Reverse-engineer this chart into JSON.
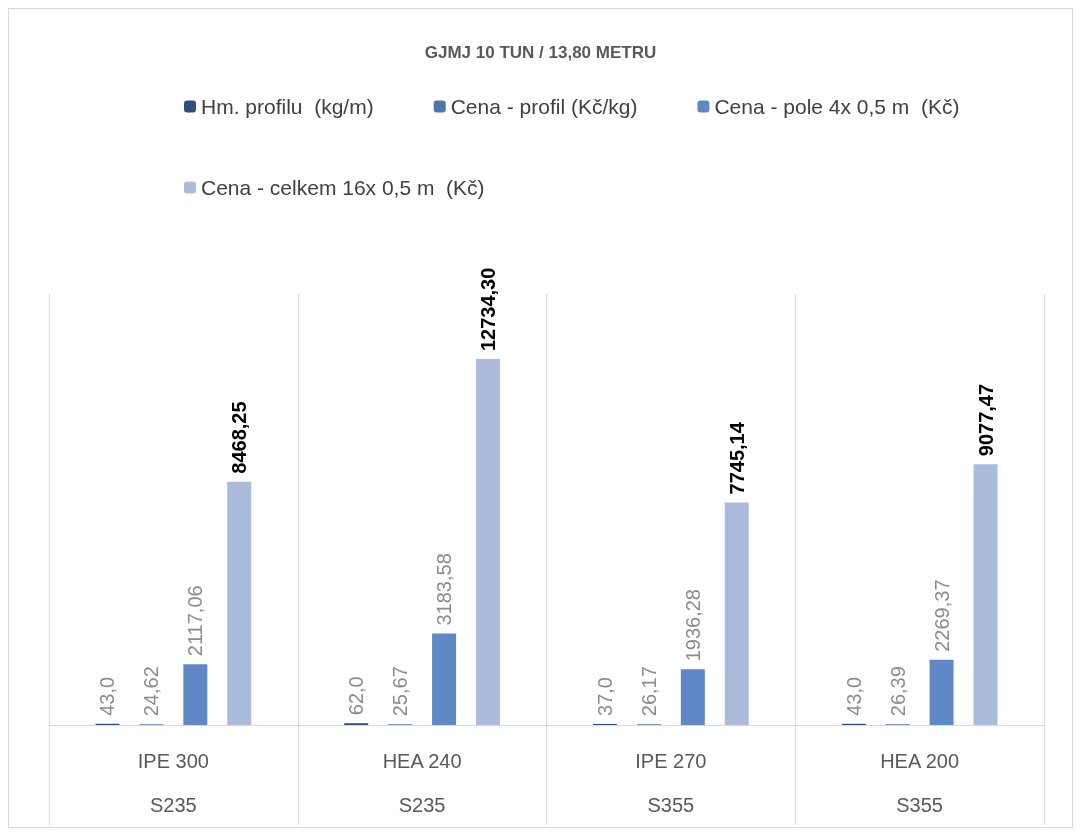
{
  "chart_data": {
    "type": "bar",
    "title": "GJMJ 10 TUN / 13,80 METRU",
    "categories": [
      "IPE 300\nS235",
      "HEA 240\nS235",
      "IPE 270\nS355",
      "HEA 200\nS355"
    ],
    "series": [
      {
        "name": "Hm. profilu  (kg/m)",
        "color": "#2f4f80",
        "values": [
          43.0,
          62.0,
          37.0,
          43.0
        ],
        "value_labels": [
          "43,0",
          "62,0",
          "37,0",
          "43,0"
        ]
      },
      {
        "name": "Cena - profil (Kč/kg)",
        "color": "#4e74a8",
        "values": [
          24.62,
          25.67,
          26.17,
          26.39
        ],
        "value_labels": [
          "24,62",
          "25,67",
          "26,17",
          "26,39"
        ]
      },
      {
        "name": "Cena - pole 4x 0,5 m  (Kč)",
        "color": "#5f88c6",
        "values": [
          2117.06,
          3183.58,
          1936.28,
          2269.37
        ],
        "value_labels": [
          "2117,06",
          "3183,58",
          "1936,28",
          "2269,37"
        ]
      },
      {
        "name": "Cena - celkem 16x 0,5 m  (Kč)",
        "color": "#abbbdb",
        "values": [
          8468.25,
          12734.3,
          7745.14,
          9077.47
        ],
        "value_labels": [
          "8468,25",
          "12734,30",
          "7745,14",
          "9077,47"
        ]
      }
    ],
    "grid": "x",
    "legend": "top"
  }
}
